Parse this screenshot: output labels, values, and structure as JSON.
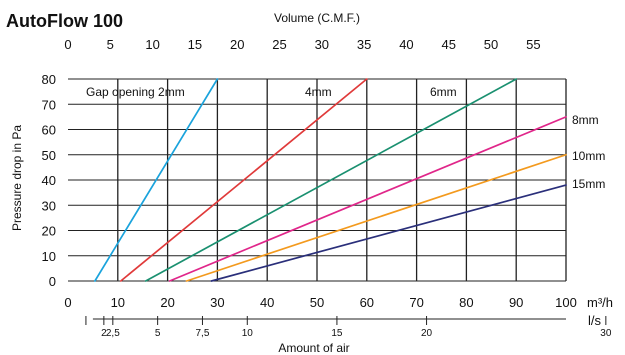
{
  "chart_data": {
    "type": "line",
    "title": "AutoFlow 100",
    "top_axis": {
      "label": "Volume (C.M.F.)",
      "ticks": [
        0,
        5,
        10,
        15,
        20,
        25,
        30,
        35,
        40,
        45,
        50,
        55
      ],
      "units_per_m3h": 0.5886
    },
    "ylabel": "Pressure drop in Pa",
    "yticks": [
      0,
      10,
      20,
      30,
      40,
      50,
      60,
      70,
      80
    ],
    "ylim": [
      0,
      80
    ],
    "xlim": [
      0,
      100
    ],
    "xticks": [
      0,
      10,
      20,
      30,
      40,
      50,
      60,
      70,
      80,
      90,
      100
    ],
    "xunit": "m³/h",
    "vgrid": [
      10,
      20,
      30,
      40,
      50,
      60,
      70,
      80,
      90,
      100
    ],
    "hgrid": [
      10,
      20,
      30,
      40,
      50,
      60,
      70,
      80
    ],
    "bottom_axis": {
      "label": "Amount of air",
      "unit": "l/s",
      "major_ticks": [
        5,
        10,
        15,
        20,
        30
      ],
      "labels": [
        "2",
        "2,5",
        "5",
        "7,5",
        "10",
        "15",
        "20",
        "30"
      ],
      "label_values": [
        2,
        2.5,
        5,
        7.5,
        10,
        15,
        20,
        30
      ],
      "extra_ticks": [
        1,
        2,
        2.5,
        7.5
      ]
    },
    "series": [
      {
        "name": "Gap opening 2mm",
        "color": "#1aa3dc",
        "x": [
          5.4,
          30.0
        ],
        "y": [
          0,
          80
        ]
      },
      {
        "name": "4mm",
        "color": "#e03a3a",
        "x": [
          10.6,
          60.0
        ],
        "y": [
          0,
          80
        ]
      },
      {
        "name": "6mm",
        "color": "#1a9070",
        "x": [
          15.6,
          90.0
        ],
        "y": [
          0,
          80
        ]
      },
      {
        "name": "8mm",
        "color": "#e0268a",
        "x": [
          20.4,
          100.0
        ],
        "y": [
          0,
          65
        ]
      },
      {
        "name": "10mm",
        "color": "#f39a1e",
        "x": [
          23.8,
          100.0
        ],
        "y": [
          0,
          50
        ]
      },
      {
        "name": "15mm",
        "color": "#2a2f7a",
        "x": [
          28.8,
          100.0
        ],
        "y": [
          0,
          38
        ]
      }
    ],
    "annotations": [
      {
        "text": "Gap opening 2mm",
        "series": 0
      },
      {
        "text": "4mm",
        "series": 1
      },
      {
        "text": "6mm",
        "series": 2
      },
      {
        "text": "8mm",
        "series": 3
      },
      {
        "text": "10mm",
        "series": 4
      },
      {
        "text": "15mm",
        "series": 5
      }
    ],
    "grid": true
  }
}
